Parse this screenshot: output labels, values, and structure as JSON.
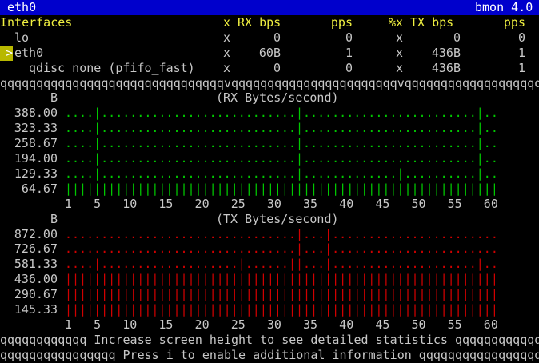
{
  "title_bar": {
    "left": "eth0",
    "right": "bmon 4.0"
  },
  "table": {
    "header": {
      "name": "Interfaces",
      "sep1": "x",
      "rx_bps": "RX bps",
      "rx_pps": "pps",
      "sep2": "%x",
      "tx_bps": "TX bps",
      "tx_pps": "pps"
    },
    "selected_marker": ">",
    "rows": [
      {
        "name": "lo",
        "sep1": "x",
        "rx_bps": "0",
        "rx_pps": 0,
        "sep2": "x",
        "tx_bps": "0",
        "tx_pps": 0
      },
      {
        "name": "eth0",
        "sep1": "x",
        "rx_bps": "60B",
        "rx_pps": 1,
        "sep2": "x",
        "tx_bps": "436B",
        "tx_pps": 1
      },
      {
        "name": "qdisc none (pfifo_fast)",
        "sep1": "x",
        "rx_bps": "0",
        "rx_pps": 0,
        "sep2": "x",
        "tx_bps": "436B",
        "tx_pps": 1
      }
    ]
  },
  "separator": "qqqqqqqqqqqqqqqqqqqqqqqqqqqqqqqvqqqqqqqqqqqqqqqqqqqqqqqvqqqqqqqqqqqqqqqqqqq",
  "graphs": [
    {
      "unit": "B",
      "title": "(RX Bytes/second)",
      "color": "#00c800",
      "rows": [
        {
          "label": "388.00",
          "plot": "....|...........................|........................|.."
        },
        {
          "label": "323.33",
          "plot": "....|...........................|........................|.."
        },
        {
          "label": "258.67",
          "plot": "....|...........................|........................|.."
        },
        {
          "label": "194.00",
          "plot": "....|...........................|........................|.."
        },
        {
          "label": "129.33",
          "plot": "....|...........................|.............|..........|.."
        },
        {
          "label": "64.67",
          "plot": "||||||||||||||||||||||||||||||||||||||||||||||||||||||||||||"
        }
      ],
      "axis": "1   5   10   15   20   25   30   35   40   45   50   55   60"
    },
    {
      "unit": "B",
      "title": "(TX Bytes/second)",
      "color": "#d00000",
      "rows": [
        {
          "label": "872.00",
          "plot": "................................|...|......................."
        },
        {
          "label": "726.67",
          "plot": "................................|...|......................."
        },
        {
          "label": "581.33",
          "plot": "....|...................|......||...|....................|.."
        },
        {
          "label": "436.00",
          "plot": "||||||||||||||||||||||||||||||||||||||||||||||||||||||||||||"
        },
        {
          "label": "290.67",
          "plot": "||||||||||||||||||||||||||||||||||||||||||||||||||||||||||||"
        },
        {
          "label": "145.33",
          "plot": "||||||||||||||||||||||||||||||||||||||||||||||||||||||||||||"
        }
      ],
      "axis": "1   5   10   15   20   25   30   35   40   45   50   55   60"
    }
  ],
  "footer": [
    "qqqqqqqqqqqq Increase screen height to see detailed statistics qqqqqqqqqqqq",
    "qqqqqqqqqqqqqqqq Press i to enable additional information qqqqqqqqqqqqqqqqq"
  ]
}
